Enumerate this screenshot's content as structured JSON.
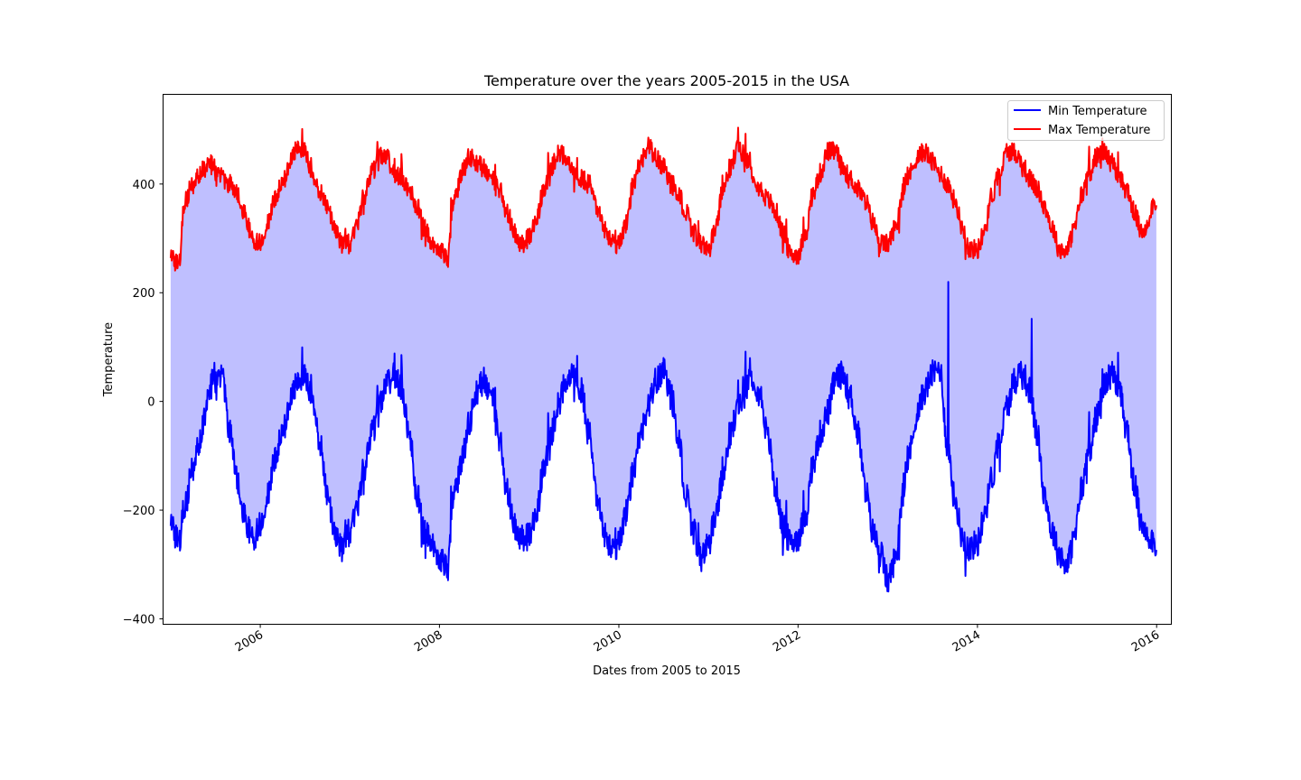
{
  "chart_data": {
    "type": "line",
    "title": "Temperature over the years 2005-2015 in the USA",
    "xlabel": "Dates from 2005 to 2015",
    "ylabel": "Temperature",
    "x_range": [
      "2004-12-01",
      "2016-03-01"
    ],
    "ylim": [
      -410,
      565
    ],
    "x_ticks": [
      {
        "date": "2006-01-01",
        "label": "2006"
      },
      {
        "date": "2008-01-01",
        "label": "2008"
      },
      {
        "date": "2010-01-01",
        "label": "2010"
      },
      {
        "date": "2012-01-01",
        "label": "2012"
      },
      {
        "date": "2014-01-01",
        "label": "2014"
      },
      {
        "date": "2016-01-01",
        "label": "2016"
      }
    ],
    "y_ticks": [
      {
        "value": -400,
        "label": "−400"
      },
      {
        "value": -200,
        "label": "−200"
      },
      {
        "value": 0,
        "label": "0"
      },
      {
        "value": 200,
        "label": "200"
      },
      {
        "value": 400,
        "label": "400"
      }
    ],
    "grid": false,
    "legend_position": "top-right",
    "fill_between": {
      "color": "#bfbfff"
    },
    "series": [
      {
        "name": "Min Temperature",
        "color": "#0000ff",
        "x": [
          "2005-01-01",
          "2005-02-01",
          "2005-03-01",
          "2005-04-01",
          "2005-05-01",
          "2005-06-01",
          "2005-07-01",
          "2005-08-01",
          "2005-09-01",
          "2005-10-01",
          "2005-11-01",
          "2005-12-01",
          "2006-01-01",
          "2006-02-01",
          "2006-03-01",
          "2006-04-01",
          "2006-05-01",
          "2006-06-01",
          "2006-07-01",
          "2006-08-01",
          "2006-09-01",
          "2006-10-01",
          "2006-11-01",
          "2006-12-01",
          "2007-01-01",
          "2007-02-01",
          "2007-03-01",
          "2007-04-01",
          "2007-05-01",
          "2007-06-01",
          "2007-07-01",
          "2007-08-01",
          "2007-09-01",
          "2007-10-01",
          "2007-11-01",
          "2007-12-01",
          "2008-01-01",
          "2008-02-01",
          "2008-03-01",
          "2008-04-01",
          "2008-05-01",
          "2008-06-01",
          "2008-07-01",
          "2008-08-01",
          "2008-09-01",
          "2008-10-01",
          "2008-11-01",
          "2008-12-01",
          "2009-01-01",
          "2009-02-01",
          "2009-03-01",
          "2009-04-01",
          "2009-05-01",
          "2009-06-01",
          "2009-07-01",
          "2009-08-01",
          "2009-09-01",
          "2009-10-01",
          "2009-11-01",
          "2009-12-01",
          "2010-01-01",
          "2010-02-01",
          "2010-03-01",
          "2010-04-01",
          "2010-05-01",
          "2010-06-01",
          "2010-07-01",
          "2010-08-01",
          "2010-09-01",
          "2010-10-01",
          "2010-11-01",
          "2010-12-01",
          "2011-01-01",
          "2011-02-01",
          "2011-03-01",
          "2011-04-01",
          "2011-05-01",
          "2011-06-01",
          "2011-07-01",
          "2011-08-01",
          "2011-09-01",
          "2011-10-01",
          "2011-11-01",
          "2011-12-01",
          "2012-01-01",
          "2012-02-01",
          "2012-03-01",
          "2012-04-01",
          "2012-05-01",
          "2012-06-01",
          "2012-07-01",
          "2012-08-01",
          "2012-09-01",
          "2012-10-01",
          "2012-11-01",
          "2012-12-01",
          "2013-01-01",
          "2013-02-01",
          "2013-03-01",
          "2013-04-01",
          "2013-05-01",
          "2013-06-01",
          "2013-07-01",
          "2013-08-01",
          "2013-09-01",
          "2013-10-01",
          "2013-11-01",
          "2013-12-01",
          "2014-01-01",
          "2014-02-01",
          "2014-03-01",
          "2014-04-01",
          "2014-05-01",
          "2014-06-01",
          "2014-07-01",
          "2014-08-01",
          "2014-09-01",
          "2014-10-01",
          "2014-11-01",
          "2014-12-01",
          "2015-01-01",
          "2015-02-01",
          "2015-03-01",
          "2015-04-01",
          "2015-05-01",
          "2015-06-01",
          "2015-07-01",
          "2015-08-01",
          "2015-09-01",
          "2015-10-01",
          "2015-11-01",
          "2015-12-31"
        ],
        "values": [
          -220,
          -260,
          -190,
          -120,
          -70,
          10,
          50,
          40,
          -60,
          -150,
          -220,
          -250,
          -230,
          -170,
          -110,
          -60,
          0,
          40,
          45,
          10,
          -70,
          -170,
          -240,
          -270,
          -240,
          -190,
          -120,
          -60,
          -10,
          35,
          50,
          20,
          -60,
          -170,
          -240,
          -260,
          -290,
          -310,
          -170,
          -110,
          -40,
          20,
          40,
          10,
          -70,
          -160,
          -230,
          -250,
          -250,
          -200,
          -120,
          -60,
          0,
          40,
          50,
          20,
          -60,
          -170,
          -240,
          -280,
          -260,
          -200,
          -130,
          -60,
          -10,
          40,
          55,
          10,
          -70,
          -170,
          -240,
          -290,
          -260,
          -210,
          -140,
          -60,
          -10,
          30,
          45,
          10,
          -70,
          -160,
          -230,
          -260,
          -250,
          -210,
          -120,
          -60,
          -20,
          40,
          50,
          10,
          -60,
          -160,
          -240,
          -280,
          -330,
          -290,
          -180,
          -90,
          -20,
          20,
          50,
          60,
          -80,
          -180,
          -250,
          -270,
          -260,
          -200,
          -140,
          -70,
          -10,
          40,
          60,
          20,
          -60,
          -170,
          -240,
          -280,
          -300,
          -250,
          -160,
          -90,
          -30,
          30,
          50,
          20,
          -50,
          -150,
          -230,
          -260
        ],
        "spikes": [
          {
            "date": "2013-09-05",
            "value": 220
          },
          {
            "date": "2014-08-10",
            "value": 152
          }
        ]
      },
      {
        "name": "Max Temperature",
        "color": "#ff0000",
        "x": [
          "2005-01-01",
          "2005-02-01",
          "2005-03-01",
          "2005-04-01",
          "2005-05-01",
          "2005-06-01",
          "2005-07-01",
          "2005-08-01",
          "2005-09-01",
          "2005-10-01",
          "2005-11-01",
          "2005-12-01",
          "2006-01-01",
          "2006-02-01",
          "2006-03-01",
          "2006-04-01",
          "2006-05-01",
          "2006-06-01",
          "2006-07-01",
          "2006-08-01",
          "2006-09-01",
          "2006-10-01",
          "2006-11-01",
          "2006-12-01",
          "2007-01-01",
          "2007-02-01",
          "2007-03-01",
          "2007-04-01",
          "2007-05-01",
          "2007-06-01",
          "2007-07-01",
          "2007-08-01",
          "2007-09-01",
          "2007-10-01",
          "2007-11-01",
          "2007-12-01",
          "2008-01-01",
          "2008-02-01",
          "2008-03-01",
          "2008-04-01",
          "2008-05-01",
          "2008-06-01",
          "2008-07-01",
          "2008-08-01",
          "2008-09-01",
          "2008-10-01",
          "2008-11-01",
          "2008-12-01",
          "2009-01-01",
          "2009-02-01",
          "2009-03-01",
          "2009-04-01",
          "2009-05-01",
          "2009-06-01",
          "2009-07-01",
          "2009-08-01",
          "2009-09-01",
          "2009-10-01",
          "2009-11-01",
          "2009-12-01",
          "2010-01-01",
          "2010-02-01",
          "2010-03-01",
          "2010-04-01",
          "2010-05-01",
          "2010-06-01",
          "2010-07-01",
          "2010-08-01",
          "2010-09-01",
          "2010-10-01",
          "2010-11-01",
          "2010-12-01",
          "2011-01-01",
          "2011-02-01",
          "2011-03-01",
          "2011-04-01",
          "2011-05-01",
          "2011-06-01",
          "2011-07-01",
          "2011-08-01",
          "2011-09-01",
          "2011-10-01",
          "2011-11-01",
          "2011-12-01",
          "2012-01-01",
          "2012-02-01",
          "2012-03-01",
          "2012-04-01",
          "2012-05-01",
          "2012-06-01",
          "2012-07-01",
          "2012-08-01",
          "2012-09-01",
          "2012-10-01",
          "2012-11-01",
          "2012-12-01",
          "2013-01-01",
          "2013-02-01",
          "2013-03-01",
          "2013-04-01",
          "2013-05-01",
          "2013-06-01",
          "2013-07-01",
          "2013-08-01",
          "2013-09-01",
          "2013-10-01",
          "2013-11-01",
          "2013-12-01",
          "2014-01-01",
          "2014-02-01",
          "2014-03-01",
          "2014-04-01",
          "2014-05-01",
          "2014-06-01",
          "2014-07-01",
          "2014-08-01",
          "2014-09-01",
          "2014-10-01",
          "2014-11-01",
          "2014-12-01",
          "2015-01-01",
          "2015-02-01",
          "2015-03-01",
          "2015-04-01",
          "2015-05-01",
          "2015-06-01",
          "2015-07-01",
          "2015-08-01",
          "2015-09-01",
          "2015-10-01",
          "2015-11-01",
          "2015-12-31"
        ],
        "values": [
          270,
          250,
          370,
          400,
          420,
          440,
          430,
          410,
          400,
          380,
          340,
          300,
          290,
          330,
          370,
          400,
          440,
          470,
          460,
          420,
          390,
          360,
          320,
          290,
          290,
          330,
          380,
          420,
          450,
          450,
          420,
          410,
          390,
          360,
          320,
          290,
          280,
          260,
          370,
          420,
          450,
          440,
          430,
          410,
          390,
          350,
          310,
          290,
          300,
          340,
          390,
          430,
          460,
          450,
          420,
          410,
          400,
          360,
          320,
          290,
          290,
          330,
          400,
          440,
          470,
          450,
          430,
          400,
          380,
          350,
          310,
          290,
          280,
          320,
          390,
          430,
          470,
          450,
          420,
          390,
          370,
          350,
          310,
          270,
          270,
          310,
          380,
          420,
          460,
          460,
          430,
          410,
          390,
          370,
          330,
          290,
          290,
          320,
          380,
          420,
          450,
          460,
          440,
          420,
          400,
          370,
          320,
          280,
          280,
          320,
          380,
          420,
          460,
          460,
          440,
          410,
          390,
          360,
          320,
          280,
          280,
          320,
          380,
          420,
          450,
          460,
          440,
          410,
          390,
          350,
          310,
          370
        ]
      }
    ]
  }
}
